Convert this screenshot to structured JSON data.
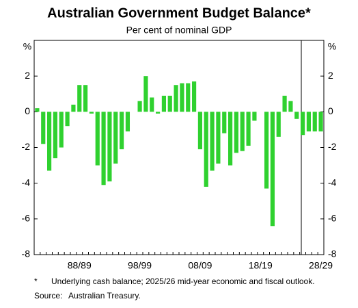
{
  "chart_data": {
    "type": "bar",
    "title": "Australian Government Budget Balance*",
    "subtitle": "Per cent of nominal GDP",
    "y_unit_label": "%",
    "categories": [
      null,
      null,
      null,
      null,
      null,
      null,
      null,
      "88/89",
      null,
      null,
      null,
      null,
      null,
      null,
      null,
      null,
      null,
      "98/99",
      null,
      null,
      null,
      null,
      null,
      null,
      null,
      null,
      null,
      "08/09",
      null,
      null,
      null,
      null,
      null,
      null,
      null,
      null,
      null,
      "18/19",
      null,
      null,
      null,
      null,
      null,
      null,
      null,
      null,
      null,
      "28/29"
    ],
    "values": [
      0.2,
      -1.8,
      -3.3,
      -2.6,
      -2.0,
      -0.8,
      0.4,
      1.5,
      1.5,
      -0.1,
      -3.0,
      -4.1,
      -3.9,
      -2.9,
      -2.1,
      -1.1,
      0.0,
      0.6,
      2.0,
      0.8,
      -0.1,
      0.9,
      0.9,
      1.5,
      1.6,
      1.6,
      1.7,
      -2.1,
      -4.2,
      -3.3,
      -2.9,
      -1.2,
      -3.0,
      -2.3,
      -2.2,
      -1.9,
      -0.5,
      0.0,
      -4.3,
      -6.4,
      -1.4,
      0.9,
      0.6,
      -0.4,
      -1.3,
      -1.1,
      -1.1,
      -1.1
    ],
    "color": "#2fd12f",
    "ylim": [
      -8,
      4
    ],
    "yticks": [
      -8,
      -6,
      -4,
      -2,
      0,
      2
    ],
    "footnote_marker": "*",
    "footnote": "Underlying cash balance; 2025/26 mid-year economic and fiscal outlook.",
    "source_label": "Source:",
    "source": "Australian Treasury."
  }
}
